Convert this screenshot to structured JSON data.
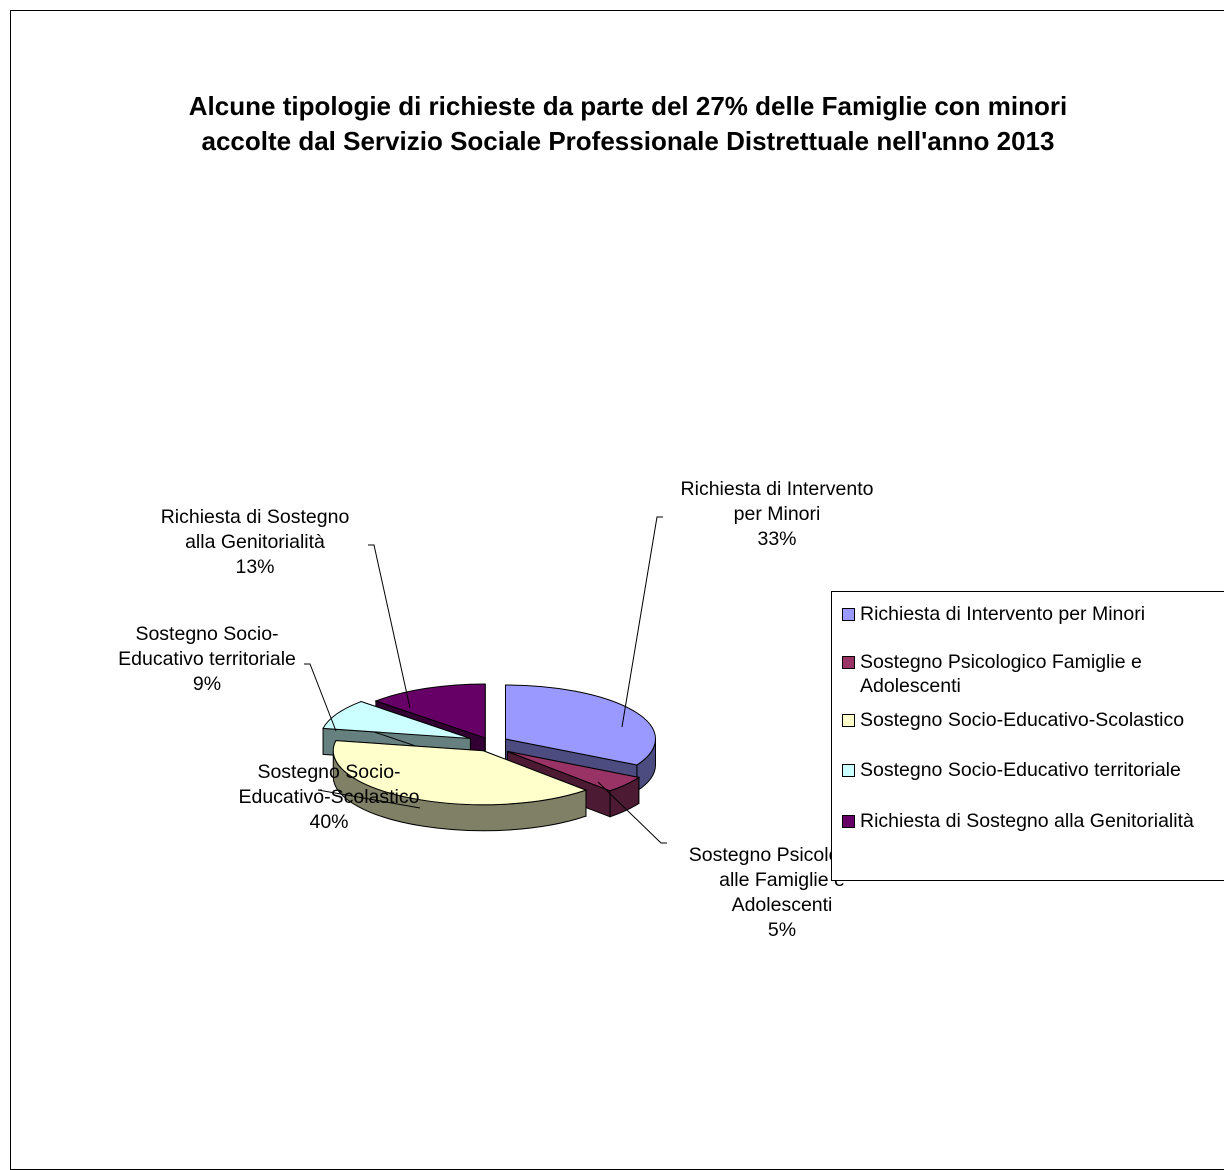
{
  "chart_data": {
    "type": "pie",
    "title": [
      "Alcune tipologie di richieste da parte del 27% delle Famiglie con minori",
      "accolte dal Servizio Sociale Professionale Distrettuale nell'anno 2013"
    ],
    "slices": [
      {
        "name": "Richiesta di Intervento per Minori",
        "label_lines": [
          "Richiesta di Intervento",
          "per Minori"
        ],
        "value": 33,
        "pct": "33%",
        "color": "#9999ff",
        "side_color": "#4c4c80"
      },
      {
        "name": "Sostegno Psicologico Famiglie e Adolescenti",
        "label_lines": [
          "Sostegno Psicologico",
          "alle Famiglie e",
          "Adolescenti"
        ],
        "value": 5,
        "pct": "5%",
        "color": "#993366",
        "side_color": "#4c1a33"
      },
      {
        "name": "Sostegno Socio-Educativo-Scolastico",
        "label_lines": [
          "Sostegno Socio-",
          "Educativo-Scolastico"
        ],
        "value": 40,
        "pct": "40%",
        "color": "#ffffcc",
        "side_color": "#808066"
      },
      {
        "name": "Sostegno Socio-Educativo territoriale",
        "label_lines": [
          "Sostegno Socio-",
          "Educativo territoriale"
        ],
        "value": 9,
        "pct": "9%",
        "color": "#ccffff",
        "side_color": "#668080"
      },
      {
        "name": "Richiesta di Sostegno alla Genitorialità",
        "label_lines": [
          "Richiesta di Sostegno",
          "alla Genitorialità"
        ],
        "value": 13,
        "pct": "13%",
        "color": "#660066",
        "side_color": "#330033"
      }
    ],
    "legend_placement": "right",
    "legend": [
      {
        "lines": [
          "Richiesta di Intervento per Minori"
        ],
        "color": "#9999ff"
      },
      {
        "lines": [
          "Sostegno Psicologico Famiglie e",
          "Adolescenti"
        ],
        "color": "#993366"
      },
      {
        "lines": [
          "Sostegno Socio-Educativo-Scolastico"
        ],
        "color": "#ffffcc"
      },
      {
        "lines": [
          "Sostegno Socio-Educativo territoriale"
        ],
        "color": "#ccffff"
      },
      {
        "lines": [
          "Richiesta di Sostegno alla Genitorialità"
        ],
        "color": "#660066"
      }
    ],
    "exploded": true,
    "three_d": true
  }
}
